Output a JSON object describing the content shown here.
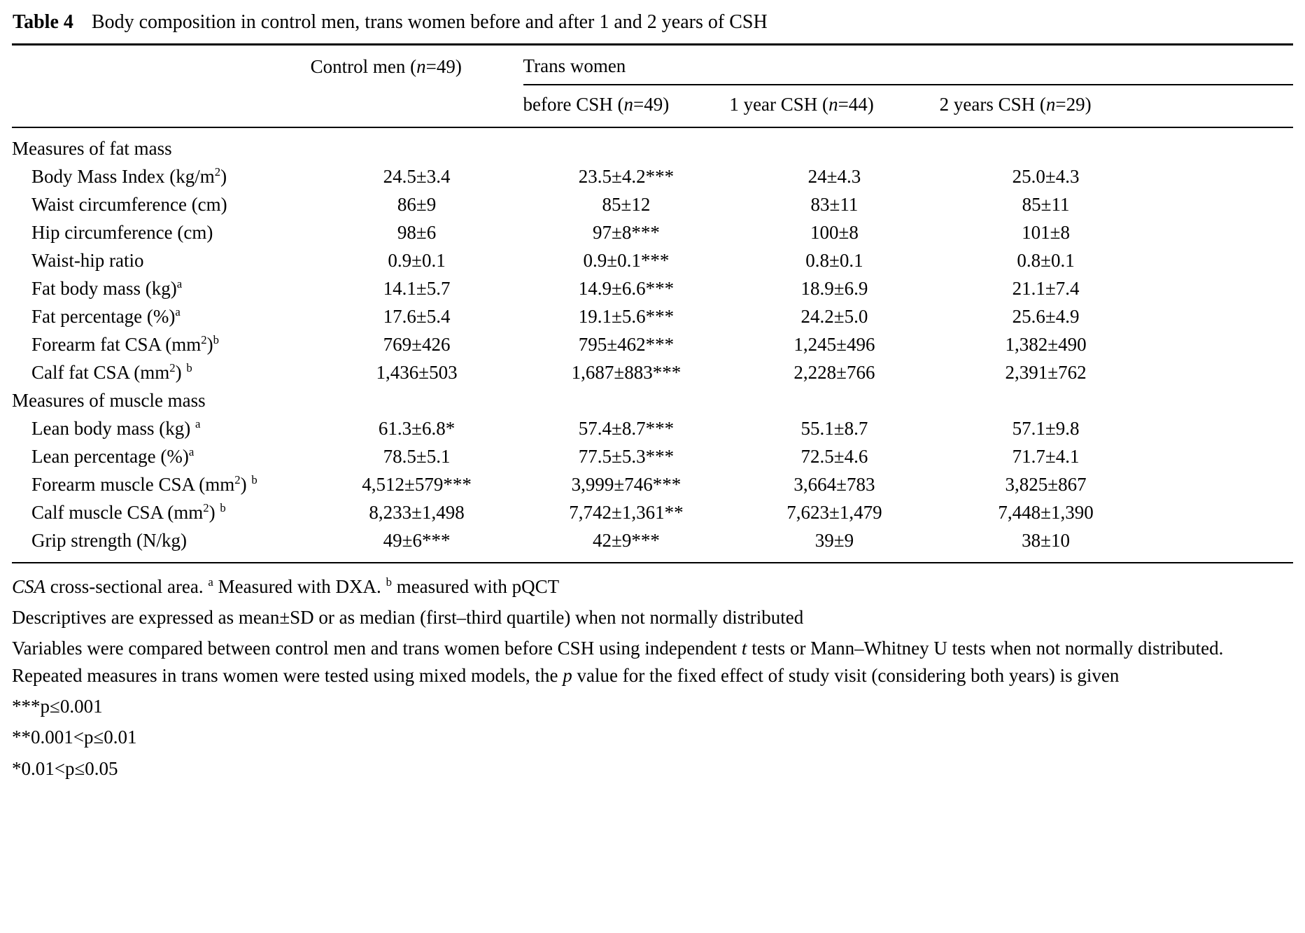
{
  "title": {
    "label": "Table 4",
    "caption": "Body composition in control men, trans women before and after 1 and 2 years of CSH"
  },
  "table": {
    "header": {
      "control_men": [
        {
          "t": "Control men ("
        },
        {
          "i": "n"
        },
        {
          "t": "=49)"
        }
      ],
      "trans_women_group": [
        {
          "t": "Trans women"
        }
      ],
      "sub_columns": [
        [
          {
            "t": "before CSH ("
          },
          {
            "i": "n"
          },
          {
            "t": "=49)"
          }
        ],
        [
          {
            "t": "1 year CSH ("
          },
          {
            "i": "n"
          },
          {
            "t": "=44)"
          }
        ],
        [
          {
            "t": "2 years CSH ("
          },
          {
            "i": "n"
          },
          {
            "t": "=29)"
          }
        ]
      ]
    },
    "sections": [
      {
        "header": "Measures of fat mass",
        "rows": [
          {
            "label": [
              {
                "t": "Body Mass Index (kg/m"
              },
              {
                "s": "2"
              },
              {
                "t": ")"
              }
            ],
            "values": [
              "24.5±3.4",
              "23.5±4.2***",
              "24±4.3",
              "25.0±4.3"
            ]
          },
          {
            "label": [
              {
                "t": "Waist circumference (cm)"
              }
            ],
            "values": [
              "86±9",
              "85±12",
              "83±11",
              "85±11"
            ]
          },
          {
            "label": [
              {
                "t": "Hip circumference (cm)"
              }
            ],
            "values": [
              "98±6",
              "97±8***",
              "100±8",
              "101±8"
            ]
          },
          {
            "label": [
              {
                "t": "Waist-hip ratio"
              }
            ],
            "values": [
              "0.9±0.1",
              "0.9±0.1***",
              "0.8±0.1",
              "0.8±0.1"
            ]
          },
          {
            "label": [
              {
                "t": "Fat body mass (kg)"
              },
              {
                "s": "a"
              }
            ],
            "values": [
              "14.1±5.7",
              "14.9±6.6***",
              "18.9±6.9",
              "21.1±7.4"
            ]
          },
          {
            "label": [
              {
                "t": "Fat percentage (%)"
              },
              {
                "s": "a"
              }
            ],
            "values": [
              "17.6±5.4",
              "19.1±5.6***",
              "24.2±5.0",
              "25.6±4.9"
            ]
          },
          {
            "label": [
              {
                "t": "Forearm fat CSA (mm"
              },
              {
                "s": "2"
              },
              {
                "t": ")"
              },
              {
                "s": "b"
              }
            ],
            "values": [
              "769±426",
              "795±462***",
              "1,245±496",
              "1,382±490"
            ]
          },
          {
            "label": [
              {
                "t": "Calf fat CSA (mm"
              },
              {
                "s": "2"
              },
              {
                "t": ") "
              },
              {
                "s": "b"
              }
            ],
            "values": [
              "1,436±503",
              "1,687±883***",
              "2,228±766",
              "2,391±762"
            ]
          }
        ]
      },
      {
        "header": "Measures of muscle mass",
        "rows": [
          {
            "label": [
              {
                "t": "Lean body mass (kg) "
              },
              {
                "s": "a"
              }
            ],
            "values": [
              "61.3±6.8*",
              "57.4±8.7***",
              "55.1±8.7",
              "57.1±9.8"
            ]
          },
          {
            "label": [
              {
                "t": "Lean percentage (%)"
              },
              {
                "s": "a"
              }
            ],
            "values": [
              "78.5±5.1",
              "77.5±5.3***",
              "72.5±4.6",
              "71.7±4.1"
            ]
          },
          {
            "label": [
              {
                "t": "Forearm muscle CSA (mm"
              },
              {
                "s": "2"
              },
              {
                "t": ") "
              },
              {
                "s": "b"
              }
            ],
            "values": [
              "4,512±579***",
              "3,999±746***",
              "3,664±783",
              "3,825±867"
            ]
          },
          {
            "label": [
              {
                "t": "Calf muscle CSA (mm"
              },
              {
                "s": "2"
              },
              {
                "t": ") "
              },
              {
                "s": "b"
              }
            ],
            "values": [
              "8,233±1,498",
              "7,742±1,361**",
              "7,623±1,479",
              "7,448±1,390"
            ]
          },
          {
            "label": [
              {
                "t": "Grip strength (N/kg)"
              }
            ],
            "values": [
              "49±6***",
              "42±9***",
              "39±9",
              "38±10"
            ]
          }
        ]
      }
    ]
  },
  "footnotes": [
    {
      "segments": [
        {
          "i": "CSA"
        },
        {
          "t": " cross-sectional area. "
        },
        {
          "s": "a"
        },
        {
          "t": " Measured with DXA. "
        },
        {
          "s": "b"
        },
        {
          "t": " measured with pQCT"
        }
      ]
    },
    {
      "segments": [
        {
          "t": "Descriptives are expressed as mean±SD or as median (first–third quartile) when not normally distributed"
        }
      ]
    },
    {
      "segments": [
        {
          "t": "Variables were compared between control men and trans women before CSH using independent "
        },
        {
          "i": "t"
        },
        {
          "t": " tests or Mann–Whitney U tests when not normally distributed. Repeated measures in trans women were tested using mixed models, the "
        },
        {
          "i": "p"
        },
        {
          "t": " value for the fixed effect of study visit (considering both years) is given"
        }
      ]
    },
    {
      "segments": [
        {
          "t": "***p≤0.001"
        }
      ]
    },
    {
      "segments": [
        {
          "t": "**0.001<p≤0.01"
        }
      ]
    },
    {
      "segments": [
        {
          "t": "*0.01<p≤0.05"
        }
      ]
    }
  ]
}
